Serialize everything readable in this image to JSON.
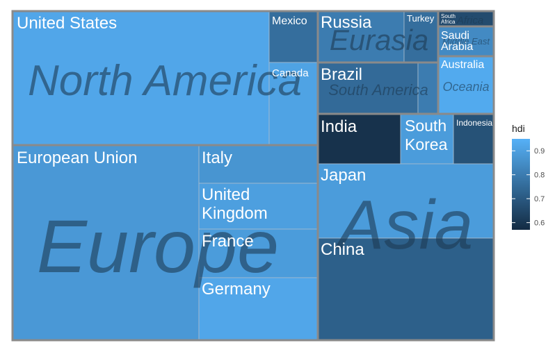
{
  "chart_data": {
    "type": "treemap",
    "value_var": "",
    "fill_var": "hdi",
    "groups": [
      {
        "name": "North America",
        "items": [
          {
            "name": "United States",
            "hdi": 0.92
          },
          {
            "name": "Mexico",
            "hdi": 0.76
          },
          {
            "name": "Canada",
            "hdi": 0.91
          }
        ]
      },
      {
        "name": "Europe",
        "items": [
          {
            "name": "European Union",
            "hdi": 0.88
          },
          {
            "name": "Italy",
            "hdi": 0.87
          },
          {
            "name": "United Kingdom",
            "hdi": 0.9
          },
          {
            "name": "France",
            "hdi": 0.89
          },
          {
            "name": "Germany",
            "hdi": 0.92
          }
        ]
      },
      {
        "name": "Eurasia",
        "items": [
          {
            "name": "Russia",
            "hdi": 0.8
          },
          {
            "name": "Turkey",
            "hdi": 0.76
          }
        ]
      },
      {
        "name": "Africa",
        "items": [
          {
            "name": "South Africa",
            "hdi": 0.66
          }
        ]
      },
      {
        "name": "Middle East",
        "items": [
          {
            "name": "Saudi Arabia",
            "hdi": 0.84
          }
        ]
      },
      {
        "name": "South America",
        "items": [
          {
            "name": "Brazil",
            "hdi": 0.75
          },
          {
            "name": "",
            "hdi": 0.8
          }
        ]
      },
      {
        "name": "Oceania",
        "items": [
          {
            "name": "Australia",
            "hdi": 0.93
          }
        ]
      },
      {
        "name": "Asia",
        "items": [
          {
            "name": "India",
            "hdi": 0.59
          },
          {
            "name": "South Korea",
            "hdi": 0.89
          },
          {
            "name": "Indonesia",
            "hdi": 0.68
          },
          {
            "name": "Japan",
            "hdi": 0.89
          },
          {
            "name": "China",
            "hdi": 0.72
          }
        ]
      }
    ],
    "legend": {
      "title": "hdi",
      "ticks": [
        0.6,
        0.7,
        0.8,
        0.9
      ],
      "tick_labels": [
        "0.6",
        "0.7",
        "0.8",
        "0.9"
      ],
      "range": [
        0.57,
        0.95
      ],
      "low_color": "#132b43",
      "high_color": "#56b1f7",
      "placement": "right"
    }
  }
}
